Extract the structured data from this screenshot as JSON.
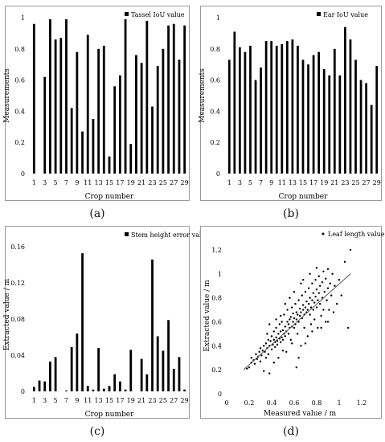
{
  "chart_data": [
    {
      "type": "bar",
      "panel_label": "(a)",
      "legend": "Tassel IoU value",
      "legend_position": "top-right",
      "xlabel": "Crop number",
      "ylabel": "Measurements",
      "ylim": [
        0,
        1
      ],
      "yticks": [
        "0",
        "0.2",
        "0.4",
        "0.6",
        "0.8",
        "1"
      ],
      "xticks": [
        "1",
        "3",
        "5",
        "7",
        "9",
        "11",
        "13",
        "15",
        "17",
        "19",
        "21",
        "23",
        "25",
        "27",
        "29"
      ],
      "categories": [
        1,
        2,
        3,
        4,
        5,
        6,
        7,
        8,
        9,
        10,
        11,
        12,
        13,
        14,
        15,
        16,
        17,
        18,
        19,
        20,
        21,
        22,
        23,
        24,
        25,
        26,
        27,
        28,
        29
      ],
      "values": [
        0.96,
        0.0,
        0.62,
        0.99,
        0.86,
        0.87,
        0.99,
        0.42,
        0.78,
        0.27,
        0.89,
        0.35,
        0.8,
        0.82,
        0.11,
        0.56,
        0.63,
        0.99,
        0.19,
        0.76,
        0.71,
        0.98,
        0.43,
        0.69,
        0.8,
        0.95,
        0.96,
        0.73,
        0.95
      ]
    },
    {
      "type": "bar",
      "panel_label": "(b)",
      "legend": "Ear IoU value",
      "legend_position": "top-right",
      "xlabel": "Crop number",
      "ylabel": "Measurements",
      "ylim": [
        0,
        1
      ],
      "yticks": [
        "0",
        "0.2",
        "0.4",
        "0.6",
        "0.8",
        "1"
      ],
      "xticks": [
        "1",
        "3",
        "5",
        "7",
        "9",
        "11",
        "13",
        "15",
        "17",
        "19",
        "21",
        "23",
        "25",
        "27",
        "29"
      ],
      "categories": [
        1,
        2,
        3,
        4,
        5,
        6,
        7,
        8,
        9,
        10,
        11,
        12,
        13,
        14,
        15,
        16,
        17,
        18,
        19,
        20,
        21,
        22,
        23,
        24,
        25,
        26,
        27,
        28,
        29
      ],
      "values": [
        0.73,
        0.91,
        0.81,
        0.78,
        0.82,
        0.6,
        0.68,
        0.85,
        0.85,
        0.82,
        0.83,
        0.85,
        0.86,
        0.82,
        0.73,
        0.7,
        0.76,
        0.78,
        0.67,
        0.63,
        0.8,
        0.63,
        0.94,
        0.86,
        0.73,
        0.6,
        0.58,
        0.44,
        0.69
      ]
    },
    {
      "type": "bar",
      "panel_label": "(c)",
      "legend": "Stem height error value",
      "legend_position": "top-right",
      "xlabel": "Crop number",
      "ylabel": "Extracted value / m",
      "ylim": [
        0,
        0.17
      ],
      "yticks": [
        "0",
        "0.04",
        "0.08",
        "0.12",
        "0.16"
      ],
      "ytick_values": [
        0,
        0.04,
        0.08,
        0.12,
        0.16
      ],
      "xticks": [
        "1",
        "3",
        "5",
        "7",
        "9",
        "11",
        "13",
        "15",
        "17",
        "19",
        "21",
        "23",
        "25",
        "27",
        "29"
      ],
      "categories": [
        1,
        2,
        3,
        4,
        5,
        6,
        7,
        8,
        9,
        10,
        11,
        12,
        13,
        14,
        15,
        16,
        17,
        18,
        19,
        20,
        21,
        22,
        23,
        24,
        25,
        26,
        27,
        28,
        29
      ],
      "values": [
        0.005,
        0.012,
        0.011,
        0.033,
        0.038,
        0.0,
        0.001,
        0.049,
        0.064,
        0.153,
        0.006,
        0.002,
        0.048,
        0.003,
        0.006,
        0.019,
        0.011,
        0.002,
        0.046,
        0.0,
        0.036,
        0.019,
        0.146,
        0.061,
        0.045,
        0.079,
        0.025,
        0.038,
        0.002
      ]
    },
    {
      "type": "scatter",
      "panel_label": "(d)",
      "legend": "Leaf length value",
      "legend_position": "top-right",
      "xlabel": "Measured value / m",
      "ylabel": "Extracted value / m",
      "xlim": [
        0,
        1.3
      ],
      "ylim": [
        0,
        1.3
      ],
      "xticks": [
        "0",
        "0.2",
        "0.4",
        "0.6",
        "0.8",
        "1",
        "1.2"
      ],
      "yticks": [
        "0",
        "0.2",
        "0.4",
        "0.6",
        "0.8",
        "1",
        "1.2"
      ],
      "trendline": {
        "x": [
          0.15,
          1.1
        ],
        "y": [
          0.2,
          1.0
        ]
      },
      "points": [
        [
          0.18,
          0.21
        ],
        [
          0.2,
          0.22
        ],
        [
          0.22,
          0.26
        ],
        [
          0.22,
          0.3
        ],
        [
          0.24,
          0.28
        ],
        [
          0.25,
          0.25
        ],
        [
          0.26,
          0.33
        ],
        [
          0.27,
          0.29
        ],
        [
          0.28,
          0.31
        ],
        [
          0.29,
          0.35
        ],
        [
          0.3,
          0.27
        ],
        [
          0.3,
          0.38
        ],
        [
          0.31,
          0.32
        ],
        [
          0.32,
          0.36
        ],
        [
          0.33,
          0.4
        ],
        [
          0.33,
          0.19
        ],
        [
          0.34,
          0.35
        ],
        [
          0.35,
          0.42
        ],
        [
          0.35,
          0.3
        ],
        [
          0.36,
          0.38
        ],
        [
          0.37,
          0.45
        ],
        [
          0.37,
          0.33
        ],
        [
          0.38,
          0.4
        ],
        [
          0.38,
          0.17
        ],
        [
          0.39,
          0.44
        ],
        [
          0.4,
          0.37
        ],
        [
          0.4,
          0.48
        ],
        [
          0.41,
          0.41
        ],
        [
          0.42,
          0.45
        ],
        [
          0.42,
          0.52
        ],
        [
          0.43,
          0.39
        ],
        [
          0.43,
          0.43
        ],
        [
          0.44,
          0.47
        ],
        [
          0.44,
          0.55
        ],
        [
          0.45,
          0.41
        ],
        [
          0.45,
          0.44
        ],
        [
          0.46,
          0.5
        ],
        [
          0.46,
          0.3
        ],
        [
          0.47,
          0.46
        ],
        [
          0.47,
          0.58
        ],
        [
          0.48,
          0.43
        ],
        [
          0.48,
          0.52
        ],
        [
          0.49,
          0.47
        ],
        [
          0.49,
          0.6
        ],
        [
          0.5,
          0.45
        ],
        [
          0.5,
          0.53
        ],
        [
          0.51,
          0.5
        ],
        [
          0.51,
          0.66
        ],
        [
          0.52,
          0.48
        ],
        [
          0.52,
          0.56
        ],
        [
          0.53,
          0.35
        ],
        [
          0.53,
          0.52
        ],
        [
          0.54,
          0.6
        ],
        [
          0.54,
          0.7
        ],
        [
          0.55,
          0.5
        ],
        [
          0.55,
          0.58
        ],
        [
          0.56,
          0.55
        ],
        [
          0.56,
          0.62
        ],
        [
          0.57,
          0.45
        ],
        [
          0.57,
          0.64
        ],
        [
          0.58,
          0.56
        ],
        [
          0.58,
          0.72
        ],
        [
          0.59,
          0.6
        ],
        [
          0.59,
          0.67
        ],
        [
          0.6,
          0.55
        ],
        [
          0.6,
          0.63
        ],
        [
          0.61,
          0.58
        ],
        [
          0.61,
          0.75
        ],
        [
          0.62,
          0.62
        ],
        [
          0.62,
          0.68
        ],
        [
          0.63,
          0.5
        ],
        [
          0.63,
          0.66
        ],
        [
          0.64,
          0.6
        ],
        [
          0.64,
          0.78
        ],
        [
          0.65,
          0.65
        ],
        [
          0.65,
          0.71
        ],
        [
          0.66,
          0.4
        ],
        [
          0.66,
          0.68
        ],
        [
          0.67,
          0.63
        ],
        [
          0.67,
          0.82
        ],
        [
          0.68,
          0.7
        ],
        [
          0.68,
          0.74
        ],
        [
          0.69,
          0.55
        ],
        [
          0.69,
          0.66
        ],
        [
          0.7,
          0.72
        ],
        [
          0.7,
          0.85
        ],
        [
          0.71,
          0.68
        ],
        [
          0.71,
          0.77
        ],
        [
          0.72,
          0.48
        ],
        [
          0.72,
          0.7
        ],
        [
          0.73,
          0.75
        ],
        [
          0.73,
          0.88
        ],
        [
          0.74,
          0.66
        ],
        [
          0.74,
          0.8
        ],
        [
          0.75,
          0.72
        ],
        [
          0.75,
          0.58
        ],
        [
          0.76,
          0.78
        ],
        [
          0.76,
          0.92
        ],
        [
          0.77,
          0.7
        ],
        [
          0.77,
          0.84
        ],
        [
          0.78,
          0.62
        ],
        [
          0.78,
          0.76
        ],
        [
          0.79,
          0.81
        ],
        [
          0.79,
          0.95
        ],
        [
          0.8,
          0.72
        ],
        [
          0.8,
          0.87
        ],
        [
          0.81,
          0.55
        ],
        [
          0.81,
          0.78
        ],
        [
          0.82,
          0.84
        ],
        [
          0.82,
          0.98
        ],
        [
          0.83,
          0.75
        ],
        [
          0.83,
          0.9
        ],
        [
          0.84,
          0.65
        ],
        [
          0.85,
          0.8
        ],
        [
          0.85,
          0.93
        ],
        [
          0.86,
          0.7
        ],
        [
          0.86,
          1.02
        ],
        [
          0.87,
          0.85
        ],
        [
          0.88,
          0.6
        ],
        [
          0.88,
          0.96
        ],
        [
          0.89,
          0.78
        ],
        [
          0.9,
          0.88
        ],
        [
          0.9,
          1.04
        ],
        [
          0.91,
          0.7
        ],
        [
          0.92,
          0.92
        ],
        [
          0.93,
          0.82
        ],
        [
          0.94,
          1.0
        ],
        [
          0.95,
          0.68
        ],
        [
          0.96,
          0.9
        ],
        [
          0.98,
          0.75
        ],
        [
          1.0,
          0.95
        ],
        [
          1.02,
          0.82
        ],
        [
          1.05,
          1.1
        ],
        [
          1.08,
          0.55
        ],
        [
          1.1,
          1.2
        ],
        [
          0.42,
          0.26
        ],
        [
          0.5,
          0.36
        ],
        [
          0.58,
          0.42
        ],
        [
          0.64,
          0.3
        ],
        [
          0.7,
          0.42
        ],
        [
          0.76,
          0.52
        ],
        [
          0.84,
          0.55
        ],
        [
          0.62,
          0.22
        ],
        [
          0.48,
          0.65
        ],
        [
          0.56,
          0.8
        ],
        [
          0.6,
          0.85
        ],
        [
          0.66,
          0.92
        ],
        [
          0.52,
          0.75
        ],
        [
          0.44,
          0.62
        ],
        [
          0.38,
          0.58
        ],
        [
          0.36,
          0.5
        ],
        [
          0.74,
          1.0
        ],
        [
          0.8,
          1.05
        ],
        [
          0.68,
          0.95
        ],
        [
          0.9,
          0.6
        ]
      ]
    }
  ]
}
